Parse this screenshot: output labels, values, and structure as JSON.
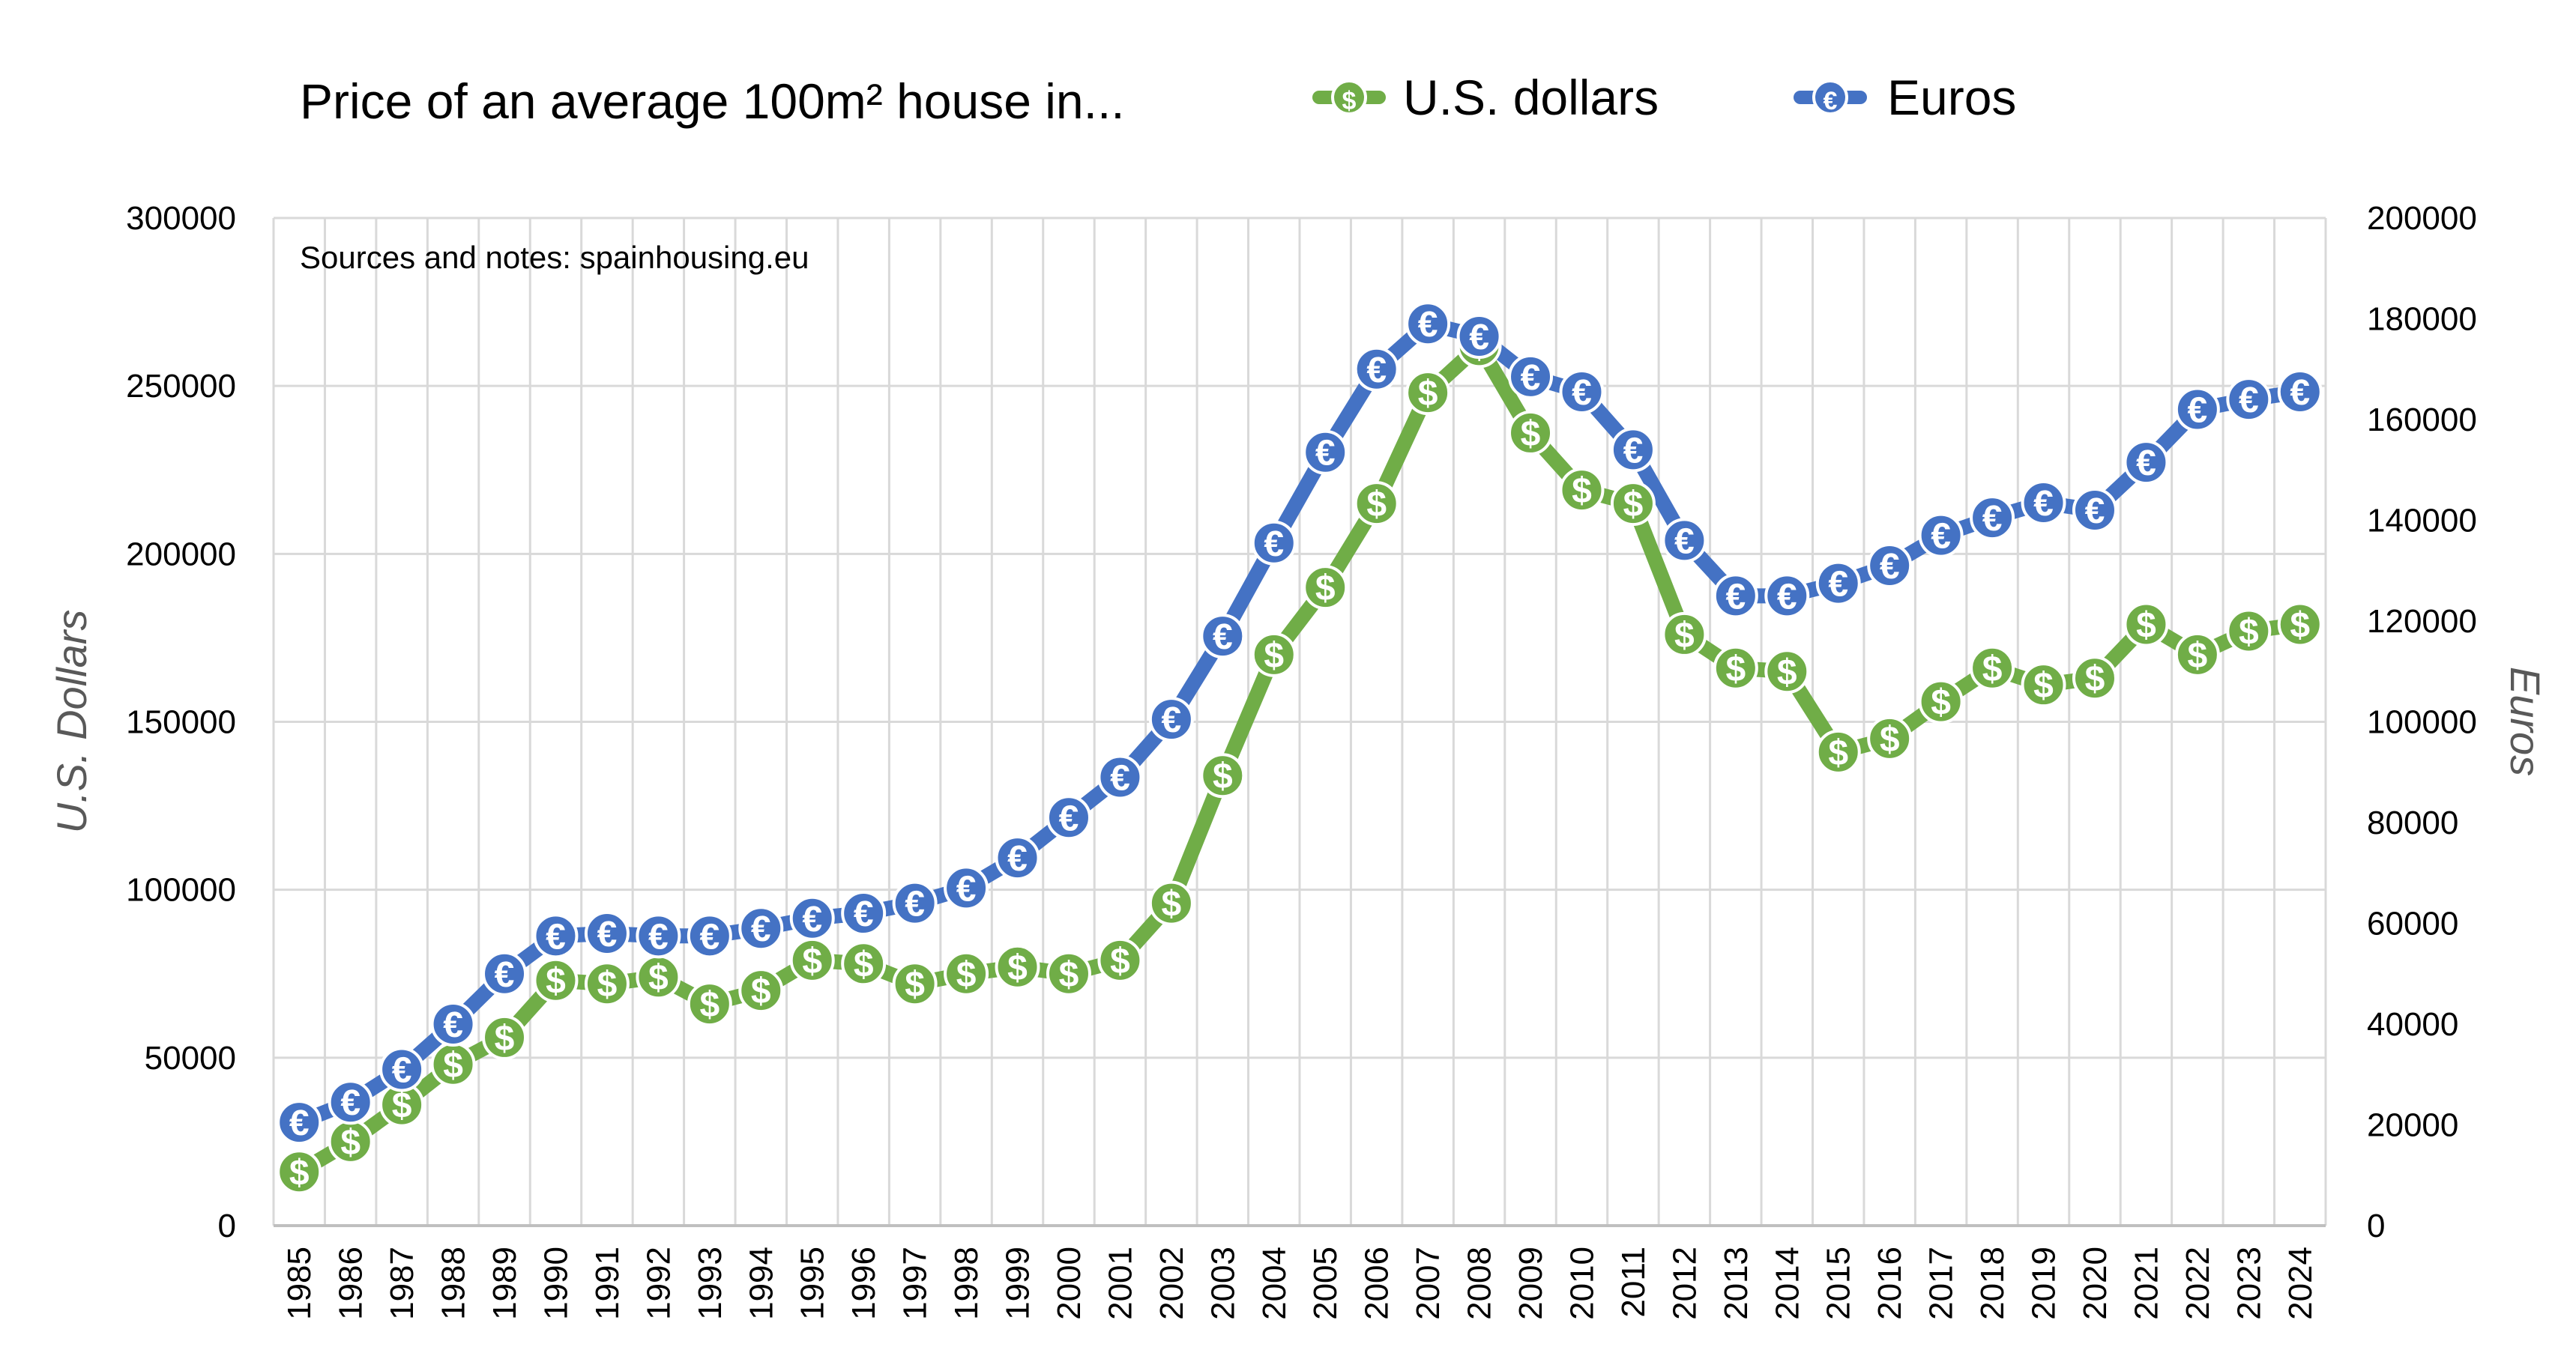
{
  "chart_data": {
    "type": "line",
    "title": "Price of an average 100m² house in...",
    "annotation": "Sources and notes: spainhousing.eu",
    "ylabel": "U.S. Dollars",
    "y2label": "Euros",
    "ylim": [
      0,
      300000
    ],
    "y2lim": [
      0,
      200000
    ],
    "yticks": [
      "0",
      "50000",
      "100000",
      "150000",
      "200000",
      "250000",
      "300000"
    ],
    "y2ticks": [
      "0",
      "20000",
      "40000",
      "60000",
      "80000",
      "100000",
      "120000",
      "140000",
      "160000",
      "180000",
      "200000"
    ],
    "grid": true,
    "legend_position": "top",
    "categories": [
      "1985",
      "1986",
      "1987",
      "1988",
      "1989",
      "1990",
      "1991",
      "1992",
      "1993",
      "1994",
      "1995",
      "1996",
      "1997",
      "1998",
      "1999",
      "2000",
      "2001",
      "2002",
      "2003",
      "2004",
      "2005",
      "2006",
      "2007",
      "2008",
      "2009",
      "2010",
      "2011",
      "2012",
      "2013",
      "2014",
      "2015",
      "2016",
      "2017",
      "2018",
      "2019",
      "2020",
      "2021",
      "2022",
      "2023",
      "2024"
    ],
    "series": [
      {
        "name": "U.S. dollars",
        "axis": "left",
        "color": "#70AD47",
        "marker": "$",
        "values": [
          16000,
          25000,
          36000,
          48000,
          56000,
          73000,
          72000,
          74000,
          66000,
          70000,
          79000,
          78000,
          72000,
          75000,
          77000,
          75000,
          79000,
          96000,
          134000,
          170000,
          190000,
          215000,
          248000,
          262000,
          236000,
          219000,
          215000,
          176000,
          166000,
          165000,
          141000,
          145000,
          156000,
          166000,
          161000,
          163000,
          179000,
          170000,
          177000,
          179000
        ]
      },
      {
        "name": "Euros",
        "axis": "right",
        "color": "#4472C4",
        "marker": "€",
        "values": [
          20500,
          24500,
          31000,
          40000,
          50000,
          57500,
          58000,
          57500,
          57500,
          59000,
          61000,
          62000,
          64000,
          67000,
          73000,
          81000,
          89000,
          100500,
          117000,
          135500,
          153500,
          170000,
          179000,
          176500,
          168500,
          165500,
          154000,
          136000,
          125000,
          125000,
          127500,
          131000,
          137000,
          140500,
          143500,
          142000,
          151500,
          162000,
          164000,
          165500
        ]
      }
    ]
  }
}
